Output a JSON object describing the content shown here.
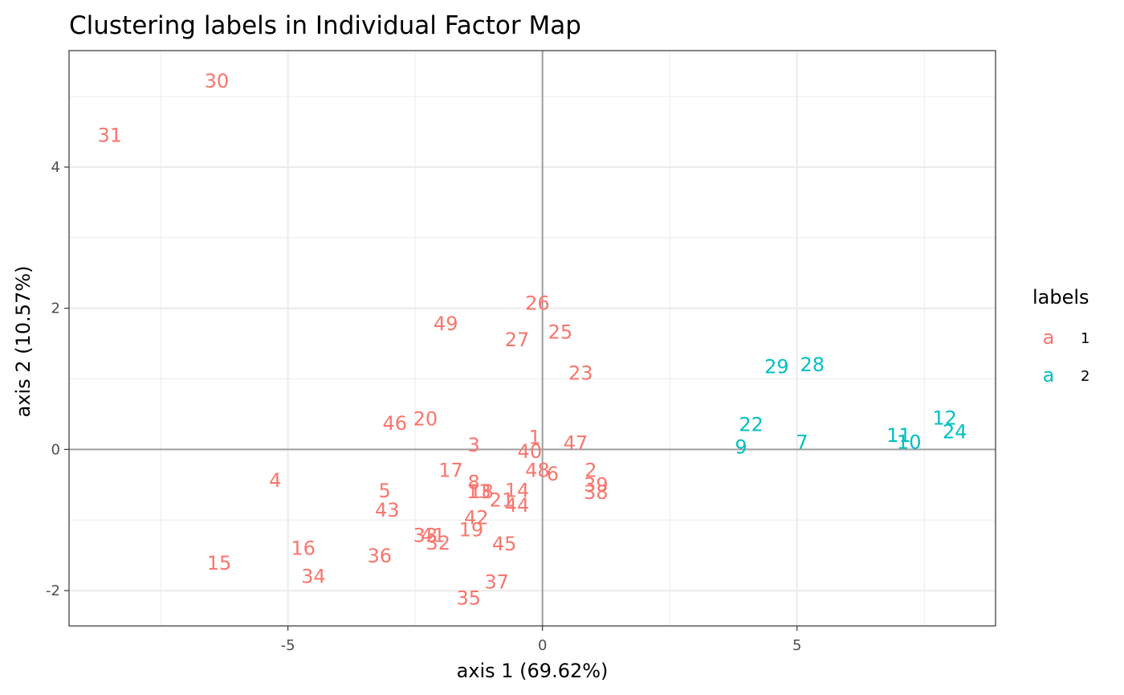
{
  "chart_data": {
    "type": "scatter",
    "title": "Clustering labels in Individual Factor Map",
    "xlabel": "axis 1 (69.62%)",
    "ylabel": "axis 2 (10.57%)",
    "xlim": [
      -9.3,
      8.9
    ],
    "ylim": [
      -2.5,
      5.65
    ],
    "xticks": [
      -5,
      0,
      5
    ],
    "xtick_labels": [
      "-5",
      "0",
      "5"
    ],
    "yticks": [
      -2,
      0,
      2,
      4
    ],
    "ytick_labels": [
      "-2",
      "0",
      "2",
      "4"
    ],
    "x_minor": [
      -7.5,
      -2.5,
      2.5,
      7.5
    ],
    "y_minor": [
      -1,
      1,
      3,
      5
    ],
    "grid": true,
    "reference_lines": {
      "x": 0,
      "y": 0
    },
    "legend": {
      "title": "labels",
      "placement": "right",
      "key_glyph": "a",
      "entries": [
        {
          "label": "1",
          "color": "#F8766D"
        },
        {
          "label": "2",
          "color": "#00BFC4"
        }
      ]
    },
    "series": [
      {
        "name": "1",
        "color": "#F8766D",
        "points": [
          {
            "label": "30",
            "x": -6.4,
            "y": 5.22
          },
          {
            "label": "31",
            "x": -8.5,
            "y": 4.45
          },
          {
            "label": "26",
            "x": -0.1,
            "y": 2.07
          },
          {
            "label": "49",
            "x": -1.9,
            "y": 1.78
          },
          {
            "label": "25",
            "x": 0.35,
            "y": 1.66
          },
          {
            "label": "27",
            "x": -0.5,
            "y": 1.55
          },
          {
            "label": "23",
            "x": 0.75,
            "y": 1.08
          },
          {
            "label": "46",
            "x": -2.9,
            "y": 0.37
          },
          {
            "label": "20",
            "x": -2.3,
            "y": 0.43
          },
          {
            "label": "1",
            "x": -0.15,
            "y": 0.17
          },
          {
            "label": "3",
            "x": -1.35,
            "y": 0.06
          },
          {
            "label": "47",
            "x": 0.65,
            "y": 0.09
          },
          {
            "label": "40",
            "x": -0.25,
            "y": -0.03
          },
          {
            "label": "4",
            "x": -5.25,
            "y": -0.44
          },
          {
            "label": "17",
            "x": -1.8,
            "y": -0.3
          },
          {
            "label": "48",
            "x": -0.1,
            "y": -0.3
          },
          {
            "label": "6",
            "x": 0.2,
            "y": -0.35
          },
          {
            "label": "2",
            "x": 0.95,
            "y": -0.3
          },
          {
            "label": "8",
            "x": -1.35,
            "y": -0.47
          },
          {
            "label": "39",
            "x": 1.05,
            "y": -0.5
          },
          {
            "label": "5",
            "x": -3.1,
            "y": -0.59
          },
          {
            "label": "13",
            "x": -1.25,
            "y": -0.6
          },
          {
            "label": "18",
            "x": -1.2,
            "y": -0.6
          },
          {
            "label": "14",
            "x": -0.5,
            "y": -0.58
          },
          {
            "label": "38",
            "x": 1.05,
            "y": -0.61
          },
          {
            "label": "21",
            "x": -0.8,
            "y": -0.72
          },
          {
            "label": "44",
            "x": -0.5,
            "y": -0.79
          },
          {
            "label": "43",
            "x": -3.05,
            "y": -0.86
          },
          {
            "label": "42",
            "x": -1.3,
            "y": -0.97
          },
          {
            "label": "19",
            "x": -1.4,
            "y": -1.14
          },
          {
            "label": "33",
            "x": -2.3,
            "y": -1.22
          },
          {
            "label": "41",
            "x": -2.15,
            "y": -1.22
          },
          {
            "label": "32",
            "x": -2.05,
            "y": -1.33
          },
          {
            "label": "45",
            "x": -0.75,
            "y": -1.34
          },
          {
            "label": "16",
            "x": -4.7,
            "y": -1.4
          },
          {
            "label": "36",
            "x": -3.2,
            "y": -1.51
          },
          {
            "label": "15",
            "x": -6.35,
            "y": -1.61
          },
          {
            "label": "34",
            "x": -4.5,
            "y": -1.8
          },
          {
            "label": "37",
            "x": -0.9,
            "y": -1.88
          },
          {
            "label": "35",
            "x": -1.45,
            "y": -2.11
          }
        ]
      },
      {
        "name": "2",
        "color": "#00BFC4",
        "points": [
          {
            "label": "29",
            "x": 4.6,
            "y": 1.17
          },
          {
            "label": "28",
            "x": 5.3,
            "y": 1.2
          },
          {
            "label": "22",
            "x": 4.1,
            "y": 0.35
          },
          {
            "label": "9",
            "x": 3.9,
            "y": 0.03
          },
          {
            "label": "7",
            "x": 5.1,
            "y": 0.1
          },
          {
            "label": "12",
            "x": 7.9,
            "y": 0.44
          },
          {
            "label": "24",
            "x": 8.1,
            "y": 0.25
          },
          {
            "label": "11",
            "x": 7.0,
            "y": 0.2
          },
          {
            "label": "10",
            "x": 7.2,
            "y": 0.1
          }
        ]
      }
    ]
  }
}
